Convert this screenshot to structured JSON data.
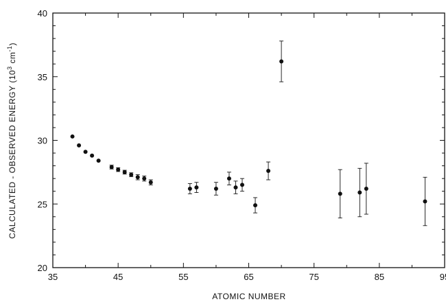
{
  "chart_data": {
    "type": "scatter",
    "title": "",
    "xlabel": "ATOMIC NUMBER",
    "ylabel_prefix": "CALCULATED - OBSERVED ENERGY  (10",
    "ylabel_sup": "3",
    "ylabel_mid": " cm",
    "ylabel_sup2": "-1",
    "ylabel_suffix": ")",
    "xlim": [
      35,
      95
    ],
    "ylim": [
      20,
      40
    ],
    "xticks": [
      35,
      45,
      55,
      65,
      75,
      85,
      95
    ],
    "yticks": [
      20,
      25,
      30,
      35,
      40
    ],
    "grid": false,
    "points": [
      {
        "x": 38,
        "y": 30.3,
        "err": 0
      },
      {
        "x": 39,
        "y": 29.6,
        "err": 0
      },
      {
        "x": 40,
        "y": 29.1,
        "err": 0
      },
      {
        "x": 41,
        "y": 28.8,
        "err": 0
      },
      {
        "x": 42,
        "y": 28.4,
        "err": 0
      },
      {
        "x": 44,
        "y": 27.9,
        "err": 0.15
      },
      {
        "x": 45,
        "y": 27.7,
        "err": 0.15
      },
      {
        "x": 46,
        "y": 27.5,
        "err": 0.15
      },
      {
        "x": 47,
        "y": 27.3,
        "err": 0.15
      },
      {
        "x": 48,
        "y": 27.1,
        "err": 0.2
      },
      {
        "x": 49,
        "y": 27.0,
        "err": 0.2
      },
      {
        "x": 50,
        "y": 26.7,
        "err": 0.2
      },
      {
        "x": 56,
        "y": 26.2,
        "err": 0.4
      },
      {
        "x": 57,
        "y": 26.3,
        "err": 0.4
      },
      {
        "x": 60,
        "y": 26.2,
        "err": 0.5
      },
      {
        "x": 62,
        "y": 27.0,
        "err": 0.5
      },
      {
        "x": 63,
        "y": 26.3,
        "err": 0.5
      },
      {
        "x": 64,
        "y": 26.5,
        "err": 0.5
      },
      {
        "x": 66,
        "y": 24.9,
        "err": 0.6
      },
      {
        "x": 68,
        "y": 27.6,
        "err": 0.7
      },
      {
        "x": 70,
        "y": 36.2,
        "err": 1.6
      },
      {
        "x": 79,
        "y": 25.8,
        "err": 1.9
      },
      {
        "x": 82,
        "y": 25.9,
        "err": 1.9
      },
      {
        "x": 83,
        "y": 26.2,
        "err": 2.0
      },
      {
        "x": 92,
        "y": 25.2,
        "err": 1.9
      }
    ]
  }
}
